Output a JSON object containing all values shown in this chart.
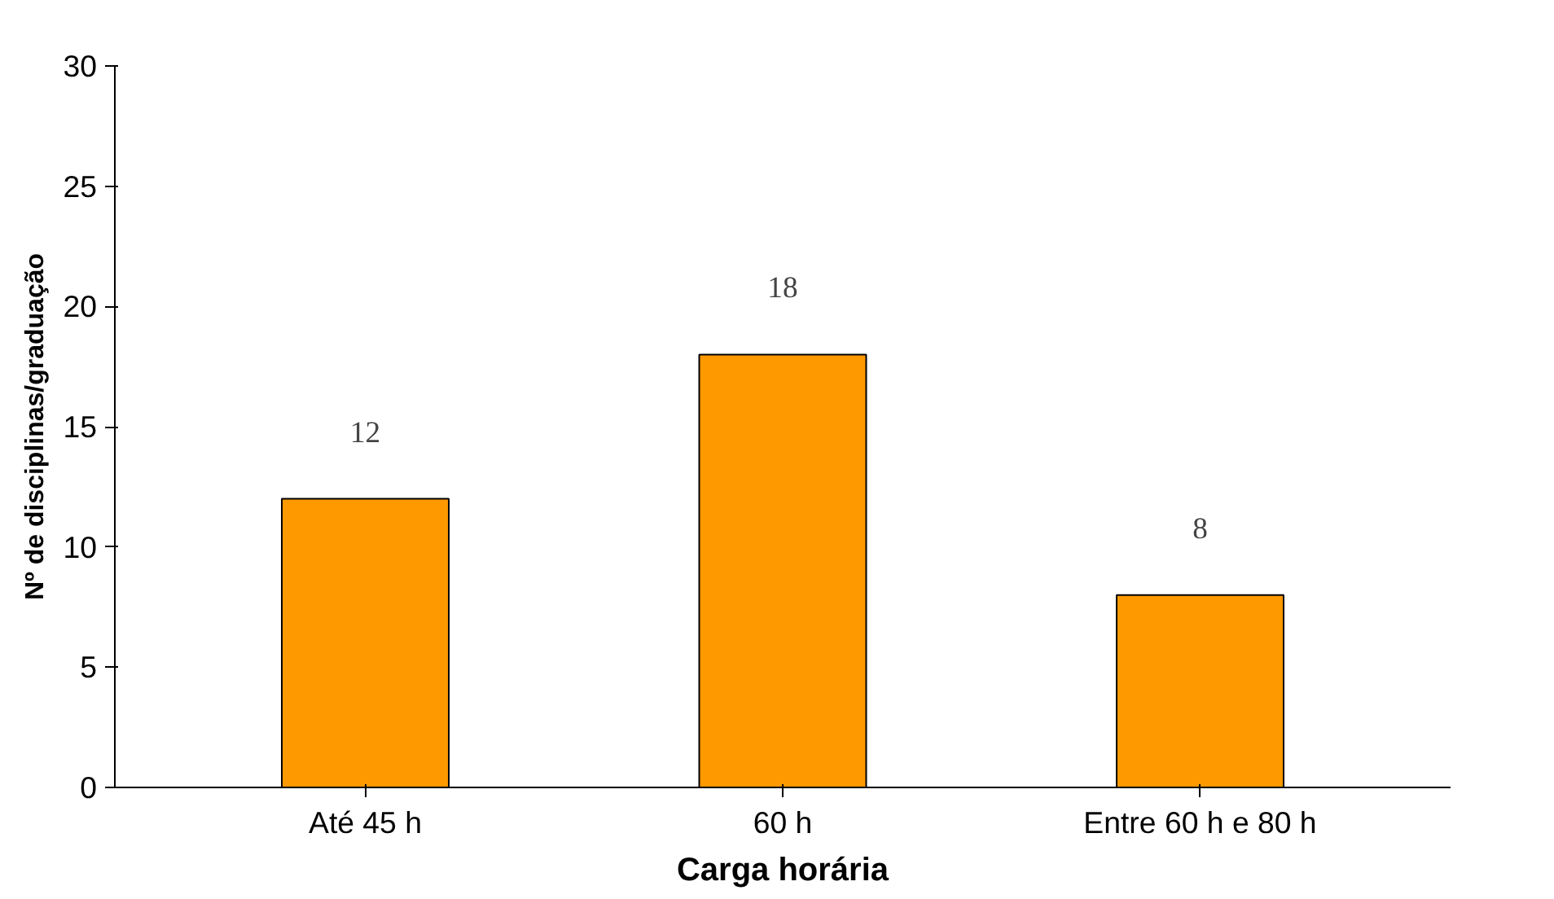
{
  "chart_data": {
    "type": "bar",
    "xlabel": "Carga horária",
    "ylabel": "Nº de disciplinas/graduação",
    "categories": [
      "Até 45 h",
      "60 h",
      "Entre 60 h e 80 h"
    ],
    "values": [
      12,
      18,
      8
    ],
    "color": "#ff9900",
    "ylim": [
      0,
      30
    ],
    "yticks": [
      0,
      5,
      10,
      15,
      20,
      25,
      30
    ],
    "grid": false,
    "data_labels": true
  }
}
